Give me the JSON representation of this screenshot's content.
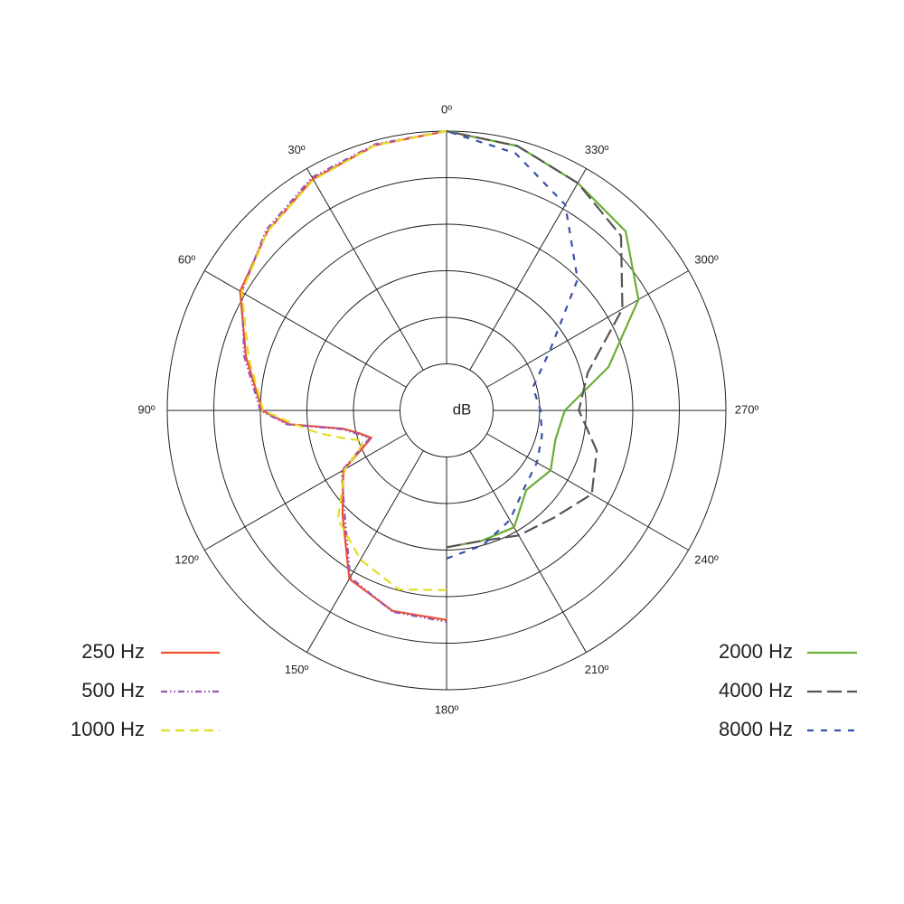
{
  "chart_data": {
    "type": "polar",
    "r_label": "dB",
    "rlim": [
      -30,
      0
    ],
    "rticks": [
      -25,
      -20,
      -15,
      -10,
      -5,
      0
    ],
    "thetaticks": [
      {
        "value": 0,
        "label": "0º"
      },
      {
        "value": 30,
        "label": "30º"
      },
      {
        "value": 60,
        "label": "60º"
      },
      {
        "value": 90,
        "label": "90º"
      },
      {
        "value": 120,
        "label": "120º"
      },
      {
        "value": 150,
        "label": "150º"
      },
      {
        "value": 180,
        "label": "180º"
      },
      {
        "value": 210,
        "label": "210º"
      },
      {
        "value": 240,
        "label": "240º"
      },
      {
        "value": 270,
        "label": "270º"
      },
      {
        "value": 300,
        "label": "300º"
      },
      {
        "value": 330,
        "label": "330º"
      }
    ],
    "theta_direction": "counterclockwise",
    "theta_zero": "top",
    "legend": "bottom",
    "series": [
      {
        "name": "250 Hz",
        "color": "#f0502e",
        "dash": "solid",
        "theta": [
          0,
          15,
          30,
          45,
          60,
          75,
          90,
          95,
          100,
          105,
          110,
          115,
          120,
          135,
          150,
          165,
          180
        ],
        "values": [
          0,
          -0.5,
          -1.3,
          -2.8,
          -4.4,
          -7.7,
          -10.2,
          -13,
          -18.7,
          -20.4,
          -21.4,
          -19.8,
          -17.2,
          -14.2,
          -9.1,
          -7.7,
          -7.5
        ]
      },
      {
        "name": "500 Hz",
        "color": "#9b55b5",
        "dash": "dashdotdot",
        "theta": [
          0,
          15,
          30,
          45,
          60,
          75,
          90,
          95,
          100,
          105,
          110,
          115,
          120,
          135,
          150,
          165,
          180
        ],
        "values": [
          0,
          -0.4,
          -1.1,
          -2.6,
          -4.6,
          -7.5,
          -10,
          -12.8,
          -18.5,
          -20.2,
          -21.2,
          -19.5,
          -17,
          -14.5,
          -9.3,
          -7.6,
          -7.3
        ]
      },
      {
        "name": "1000 Hz",
        "color": "#e4dc22",
        "dash": "dashed",
        "theta": [
          0,
          15,
          30,
          45,
          60,
          75,
          90,
          95,
          100,
          105,
          110,
          115,
          120,
          135,
          150,
          165,
          180
        ],
        "values": [
          0,
          -0.5,
          -1.4,
          -2.8,
          -4.6,
          -8,
          -10.3,
          -13.5,
          -16,
          -18.5,
          -20.5,
          -19.5,
          -17.4,
          -13.5,
          -11.5,
          -10.1,
          -10.7
        ]
      },
      {
        "name": "2000 Hz",
        "color": "#6aae35",
        "dash": "solid",
        "theta": [
          180,
          195,
          210,
          225,
          240,
          255,
          270,
          285,
          300,
          315,
          330,
          345,
          360
        ],
        "values": [
          -15.3,
          -15.5,
          -15.5,
          -17.9,
          -17.1,
          -17.9,
          -17.3,
          -12,
          -6.2,
          -2.8,
          -1.8,
          -0.6,
          0
        ]
      },
      {
        "name": "4000 Hz",
        "color": "#555555",
        "dash": "longdash",
        "theta": [
          180,
          195,
          210,
          225,
          240,
          255,
          270,
          285,
          300,
          315,
          330,
          345,
          360
        ],
        "values": [
          -15.3,
          -15.5,
          -14.5,
          -13.7,
          -12,
          -13.3,
          -15.8,
          -14.3,
          -8.2,
          -3.5,
          -1.8,
          -0.6,
          0
        ]
      },
      {
        "name": "8000 Hz",
        "color": "#3a4fa8",
        "dash": "dashed",
        "theta": [
          180,
          195,
          210,
          225,
          240,
          255,
          270,
          285,
          300,
          315,
          330,
          345,
          360
        ],
        "values": [
          -14.1,
          -15,
          -16.4,
          -18.2,
          -18.8,
          -19.4,
          -19.9,
          -20.4,
          -17.2,
          -10.1,
          -4.5,
          -1.4,
          0
        ]
      }
    ]
  }
}
